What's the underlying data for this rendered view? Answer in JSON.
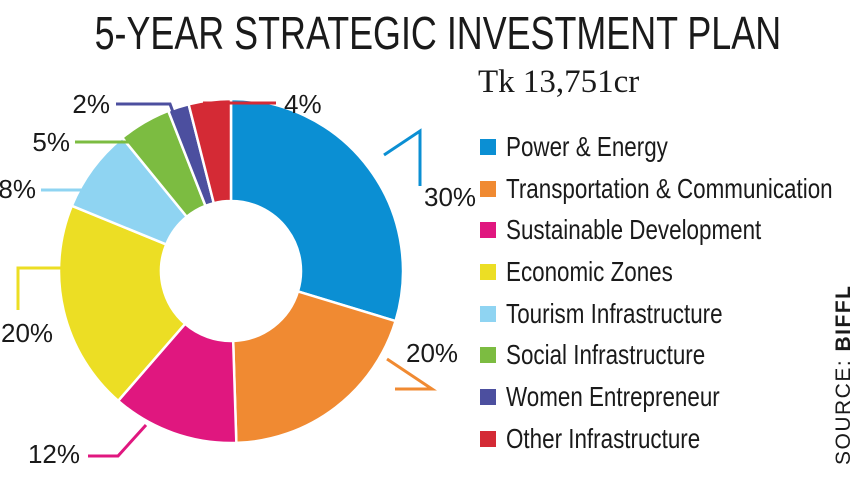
{
  "chart_data": {
    "type": "pie",
    "title": "5-YEAR STRATEGIC INVESTMENT PLAN",
    "subtitle": "Tk 13,751cr",
    "categories": [
      "Power & Energy",
      "Transportation & Communication",
      "Sustainable Development",
      "Economic Zones",
      "Tourism Infrastructure",
      "Social Infrastructure",
      "Women Entrepreneur",
      "Other Infrastructure"
    ],
    "values": [
      30,
      20,
      12,
      20,
      8,
      5,
      2,
      4
    ],
    "data_labels": [
      "30%",
      "20%",
      "12%",
      "20%",
      "8%",
      "5%",
      "2%",
      "4%"
    ],
    "colors": [
      "#0b8fd3",
      "#f08a32",
      "#e0177f",
      "#ecde24",
      "#8fd4f2",
      "#7cbc41",
      "#4c4f9f",
      "#d42a35"
    ],
    "donut": true,
    "legend_position": "right"
  },
  "source": {
    "prefix": "SOURCE: ",
    "name": "BIFFL"
  }
}
